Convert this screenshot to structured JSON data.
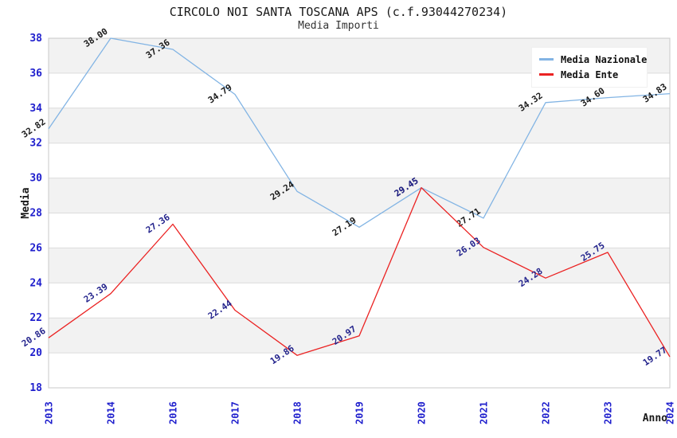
{
  "header": {
    "title": "CIRCOLO NOI SANTA TOSCANA APS (c.f.93044270234)",
    "subtitle": "Media Importi"
  },
  "legend": {
    "position": "top-right",
    "items": [
      {
        "label": "Media Nazionale",
        "color": "#82b4e4"
      },
      {
        "label": "Media Ente",
        "color": "#eb2222"
      }
    ]
  },
  "chart_data": {
    "type": "line",
    "title": "CIRCOLO NOI SANTA TOSCANA APS (c.f.93044270234)",
    "subtitle": "Media Importi",
    "xlabel": "Anno",
    "ylabel": "Media",
    "x": [
      "2013",
      "2014",
      "2016",
      "2017",
      "2018",
      "2019",
      "2020",
      "2021",
      "2022",
      "2023",
      "2024"
    ],
    "series": [
      {
        "name": "Media Nazionale",
        "color": "#82b4e4",
        "label_color": "#1a1a1a",
        "values": [
          32.82,
          38.0,
          37.36,
          34.79,
          29.24,
          27.19,
          29.45,
          27.71,
          34.32,
          34.6,
          34.83
        ]
      },
      {
        "name": "Media Ente",
        "color": "#eb2222",
        "label_color": "#23238c",
        "values": [
          20.86,
          23.39,
          27.36,
          22.44,
          19.86,
          20.97,
          29.45,
          26.03,
          24.28,
          25.75,
          19.77
        ]
      }
    ],
    "ylim": [
      18,
      38
    ],
    "ytick_step": 2,
    "yticks": [
      18,
      20,
      22,
      24,
      26,
      28,
      30,
      32,
      34,
      36,
      38
    ],
    "grid": true,
    "alternating_bands": true,
    "band_color": "#f2f2f2",
    "grid_color": "#dcdcdc",
    "border_color": "#c8c8c8",
    "tick_label_color": "#1f1fcd",
    "point_labels_decimals": 2,
    "legend_position": "top-right"
  }
}
